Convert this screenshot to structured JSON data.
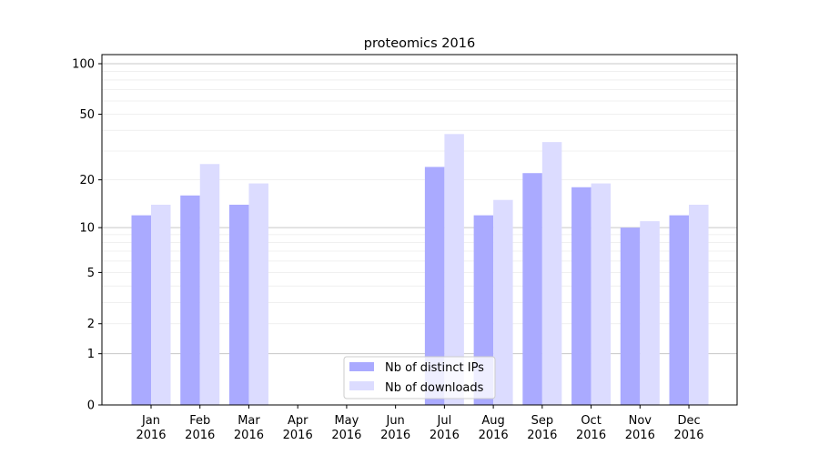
{
  "chart_data": {
    "type": "bar",
    "title": "proteomics 2016",
    "xlabel": "",
    "ylabel": "",
    "yscale": "log10(1+y)",
    "ylim": [
      0,
      110
    ],
    "yticks": [
      0,
      1,
      2,
      5,
      10,
      20,
      50,
      100
    ],
    "ytick_labels": [
      "0",
      "1",
      "2",
      "5",
      "10",
      "20",
      "50",
      "100"
    ],
    "grid": true,
    "categories": [
      {
        "month": "Jan",
        "year": "2016"
      },
      {
        "month": "Feb",
        "year": "2016"
      },
      {
        "month": "Mar",
        "year": "2016"
      },
      {
        "month": "Apr",
        "year": "2016"
      },
      {
        "month": "May",
        "year": "2016"
      },
      {
        "month": "Jun",
        "year": "2016"
      },
      {
        "month": "Jul",
        "year": "2016"
      },
      {
        "month": "Aug",
        "year": "2016"
      },
      {
        "month": "Sep",
        "year": "2016"
      },
      {
        "month": "Oct",
        "year": "2016"
      },
      {
        "month": "Nov",
        "year": "2016"
      },
      {
        "month": "Dec",
        "year": "2016"
      }
    ],
    "series": [
      {
        "name": "Nb of distinct IPs",
        "color": "#aaaaff",
        "values": [
          12,
          16,
          14,
          0,
          0,
          0,
          24,
          12,
          22,
          18,
          10,
          12
        ]
      },
      {
        "name": "Nb of downloads",
        "color": "#dcdcff",
        "values": [
          14,
          25,
          19,
          0,
          0,
          0,
          38,
          15,
          34,
          19,
          11,
          14
        ]
      }
    ],
    "legend_position": "lower center"
  }
}
